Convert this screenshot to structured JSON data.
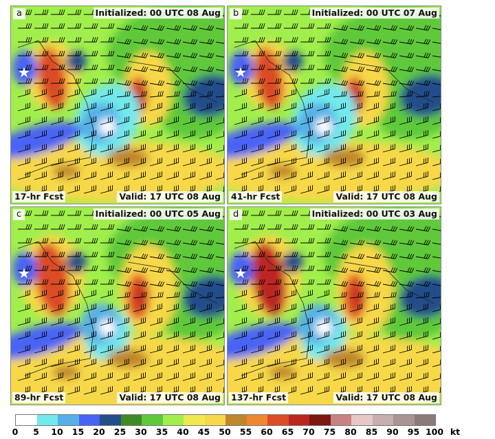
{
  "panels": [
    {
      "letter": "a",
      "initialized": "Initialized: 00 UTC 08 Aug",
      "forecast": "17-hr Fcst",
      "valid": "Valid: 17 UTC 08 Aug"
    },
    {
      "letter": "b",
      "initialized": "Initialized: 00 UTC 07 Aug",
      "forecast": "41-hr Fcst",
      "valid": "Valid: 17 UTC 08 Aug"
    },
    {
      "letter": "c",
      "initialized": "Initialized: 00 UTC 05 Aug",
      "forecast": "89-hr Fcst",
      "valid": "Valid: 17 UTC 08 Aug"
    },
    {
      "letter": "d",
      "initialized": "Initialized: 00 UTC 03 Aug",
      "forecast": "137-hr Fcst",
      "valid": "Valid: 17 UTC 08 Aug"
    }
  ],
  "colorbar": {
    "ticks": [
      "0",
      "5",
      "10",
      "15",
      "20",
      "25",
      "30",
      "35",
      "40",
      "45",
      "50",
      "55",
      "60",
      "65",
      "70",
      "75",
      "80",
      "85",
      "90",
      "95",
      "100"
    ],
    "unit": "kt",
    "colors": [
      "#ffffff",
      "#72e9ec",
      "#54b0e6",
      "#4864f4",
      "#244e8a",
      "#3f8a26",
      "#5fc93a",
      "#a0ef4c",
      "#efe84e",
      "#f7d84a",
      "#c0862c",
      "#ef8633",
      "#db4c25",
      "#bc2520",
      "#7e1710",
      "#c98282",
      "#e8c7c7",
      "#c8aeae",
      "#a89492",
      "#8a7a78",
      "#6c5c5a"
    ]
  },
  "markers": {
    "location": "star-icon"
  }
}
